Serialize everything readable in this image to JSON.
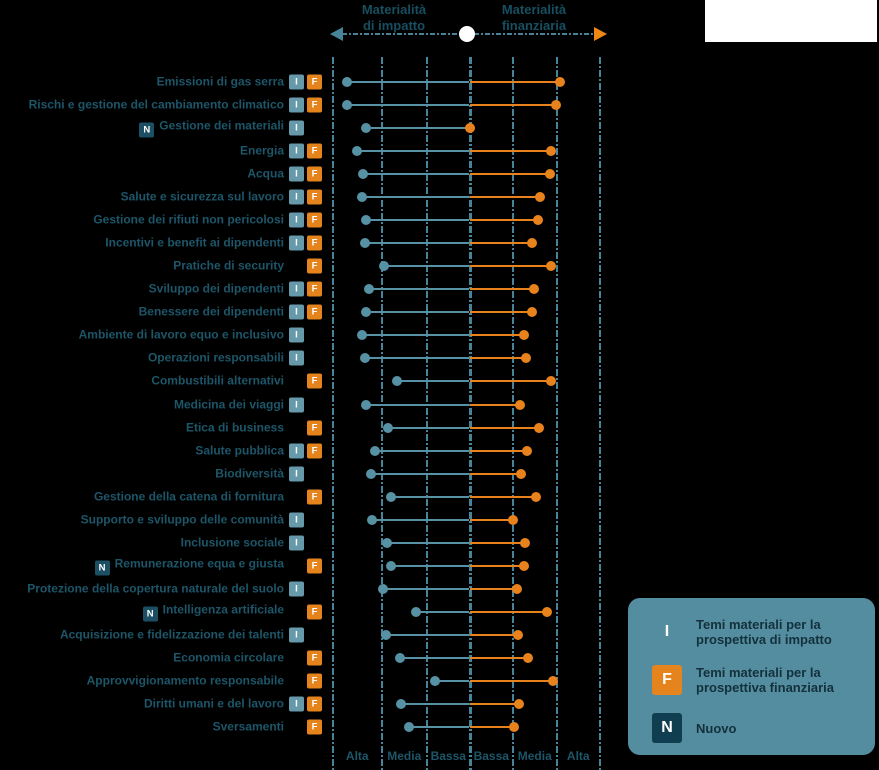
{
  "header": {
    "impact": {
      "line1": "Materialità",
      "line2": "di impatto"
    },
    "financial": {
      "line1": "Materialità",
      "line2": "finanziaria"
    }
  },
  "badge_letters": {
    "impact": "I",
    "financial": "F",
    "new": "N"
  },
  "legend": {
    "items": [
      {
        "badge": "I",
        "badge_color": "#548da0",
        "label": "Temi materiali per la prospettiva di impatto"
      },
      {
        "badge": "F",
        "badge_color": "#e5831d",
        "label": "Temi materiali per la prospettiva finanziaria"
      },
      {
        "badge": "N",
        "badge_color": "#0f3e50",
        "label": "Nuovo"
      }
    ]
  },
  "colors": {
    "background": "#000000",
    "white_panel": "#ffffff",
    "impact": "#5691a4",
    "financial": "#e8821c",
    "badge_impact": "#6699aa",
    "badge_financial": "#e5831d",
    "badge_new": "#1c4f63",
    "gridline": "#47849a",
    "label_text": "#1d5669",
    "header_text": "#174f60",
    "legend_bg": "#548da0",
    "legend_text": "#13303b",
    "arrow_right": "#f08714"
  },
  "chart_data": {
    "type": "dumbbell",
    "orientation": "horizontal-bidirectional",
    "left_axis_title": "Materialità di impatto",
    "right_axis_title": "Materialità finanziaria",
    "axis_labels": [
      "Alta",
      "Media",
      "Bassa",
      "Bassa",
      "Media",
      "Alta"
    ],
    "value_scale": {
      "min": 0,
      "max": 3,
      "note": "0 = centro (bassa), 3 = bordo esterno (alta), per ciascun lato"
    },
    "rows": [
      {
        "label": "Emissioni di gas serra",
        "new": false,
        "impact_badge": true,
        "financial_badge": true,
        "impact": 2.69,
        "financial": 2.08
      },
      {
        "label": "Rischi e gestione del cambiamento climatico",
        "new": false,
        "impact_badge": true,
        "financial_badge": true,
        "impact": 2.69,
        "financial": 1.99
      },
      {
        "label": "Gestione dei materiali",
        "new": true,
        "impact_badge": true,
        "financial_badge": false,
        "impact": 2.27,
        "financial": 0.0
      },
      {
        "label": "Energia",
        "new": false,
        "impact_badge": true,
        "financial_badge": true,
        "impact": 2.47,
        "financial": 1.87
      },
      {
        "label": "Acqua",
        "new": false,
        "impact_badge": true,
        "financial_badge": true,
        "impact": 2.34,
        "financial": 1.85
      },
      {
        "label": "Salute e sicurezza sul lavoro",
        "new": false,
        "impact_badge": true,
        "financial_badge": true,
        "impact": 2.36,
        "financial": 1.62
      },
      {
        "label": "Gestione dei rifiuti non pericolosi",
        "new": false,
        "impact_badge": true,
        "financial_badge": true,
        "impact": 2.27,
        "financial": 1.57
      },
      {
        "label": "Incentivi e benefit ai dipendenti",
        "new": false,
        "impact_badge": true,
        "financial_badge": true,
        "impact": 2.3,
        "financial": 1.44
      },
      {
        "label": "Pratiche di security",
        "new": false,
        "impact_badge": false,
        "financial_badge": true,
        "impact": 1.88,
        "financial": 1.87
      },
      {
        "label": "Sviluppo dei dipendenti",
        "new": false,
        "impact_badge": true,
        "financial_badge": true,
        "impact": 2.21,
        "financial": 1.48
      },
      {
        "label": "Benessere dei dipendenti",
        "new": false,
        "impact_badge": true,
        "financial_badge": true,
        "impact": 2.27,
        "financial": 1.44
      },
      {
        "label": "Ambiente di lavoro equo e inclusivo",
        "new": false,
        "impact_badge": true,
        "financial_badge": false,
        "impact": 2.36,
        "financial": 1.25
      },
      {
        "label": "Operazioni responsabili",
        "new": false,
        "impact_badge": true,
        "financial_badge": false,
        "impact": 2.3,
        "financial": 1.3
      },
      {
        "label": "Combustibili alternativi",
        "new": false,
        "impact_badge": false,
        "financial_badge": true,
        "impact": 1.59,
        "financial": 1.87
      },
      {
        "label": "Medicina dei viaggi",
        "new": false,
        "impact_badge": true,
        "financial_badge": false,
        "impact": 2.27,
        "financial": 1.16
      },
      {
        "label": "Etica di business",
        "new": false,
        "impact_badge": false,
        "financial_badge": true,
        "impact": 1.79,
        "financial": 1.6
      },
      {
        "label": "Salute pubblica",
        "new": false,
        "impact_badge": true,
        "financial_badge": true,
        "impact": 2.08,
        "financial": 1.32
      },
      {
        "label": "Biodiversità",
        "new": false,
        "impact_badge": true,
        "financial_badge": false,
        "impact": 2.16,
        "financial": 1.18
      },
      {
        "label": "Gestione della catena di fornitura",
        "new": false,
        "impact_badge": false,
        "financial_badge": true,
        "impact": 1.73,
        "financial": 1.53
      },
      {
        "label": "Supporto e sviluppo delle comunità",
        "new": false,
        "impact_badge": true,
        "financial_badge": false,
        "impact": 2.14,
        "financial": 1.0
      },
      {
        "label": "Inclusione sociale",
        "new": false,
        "impact_badge": true,
        "financial_badge": false,
        "impact": 1.81,
        "financial": 1.28
      },
      {
        "label": "Remunerazione equa e giusta",
        "new": true,
        "impact_badge": false,
        "financial_badge": true,
        "impact": 1.73,
        "financial": 1.25
      },
      {
        "label": "Protezione della copertura naturale del suolo",
        "new": false,
        "impact_badge": true,
        "financial_badge": false,
        "impact": 1.9,
        "financial": 1.09
      },
      {
        "label": "Intelligenza artificiale",
        "new": true,
        "impact_badge": false,
        "financial_badge": true,
        "impact": 1.18,
        "financial": 1.78
      },
      {
        "label": "Acquisizione e fidelizzazione dei talenti",
        "new": false,
        "impact_badge": true,
        "financial_badge": false,
        "impact": 1.84,
        "financial": 1.11
      },
      {
        "label": "Economia circolare",
        "new": false,
        "impact_badge": false,
        "financial_badge": true,
        "impact": 1.53,
        "financial": 1.34
      },
      {
        "label": "Approvvigionamento responsabile",
        "new": false,
        "impact_badge": false,
        "financial_badge": true,
        "impact": 0.76,
        "financial": 1.92
      },
      {
        "label": "Diritti umani e del lavoro",
        "new": false,
        "impact_badge": true,
        "financial_badge": true,
        "impact": 1.51,
        "financial": 1.14
      },
      {
        "label": "Sversamenti",
        "new": false,
        "impact_badge": false,
        "financial_badge": true,
        "impact": 1.33,
        "financial": 1.02
      }
    ]
  }
}
